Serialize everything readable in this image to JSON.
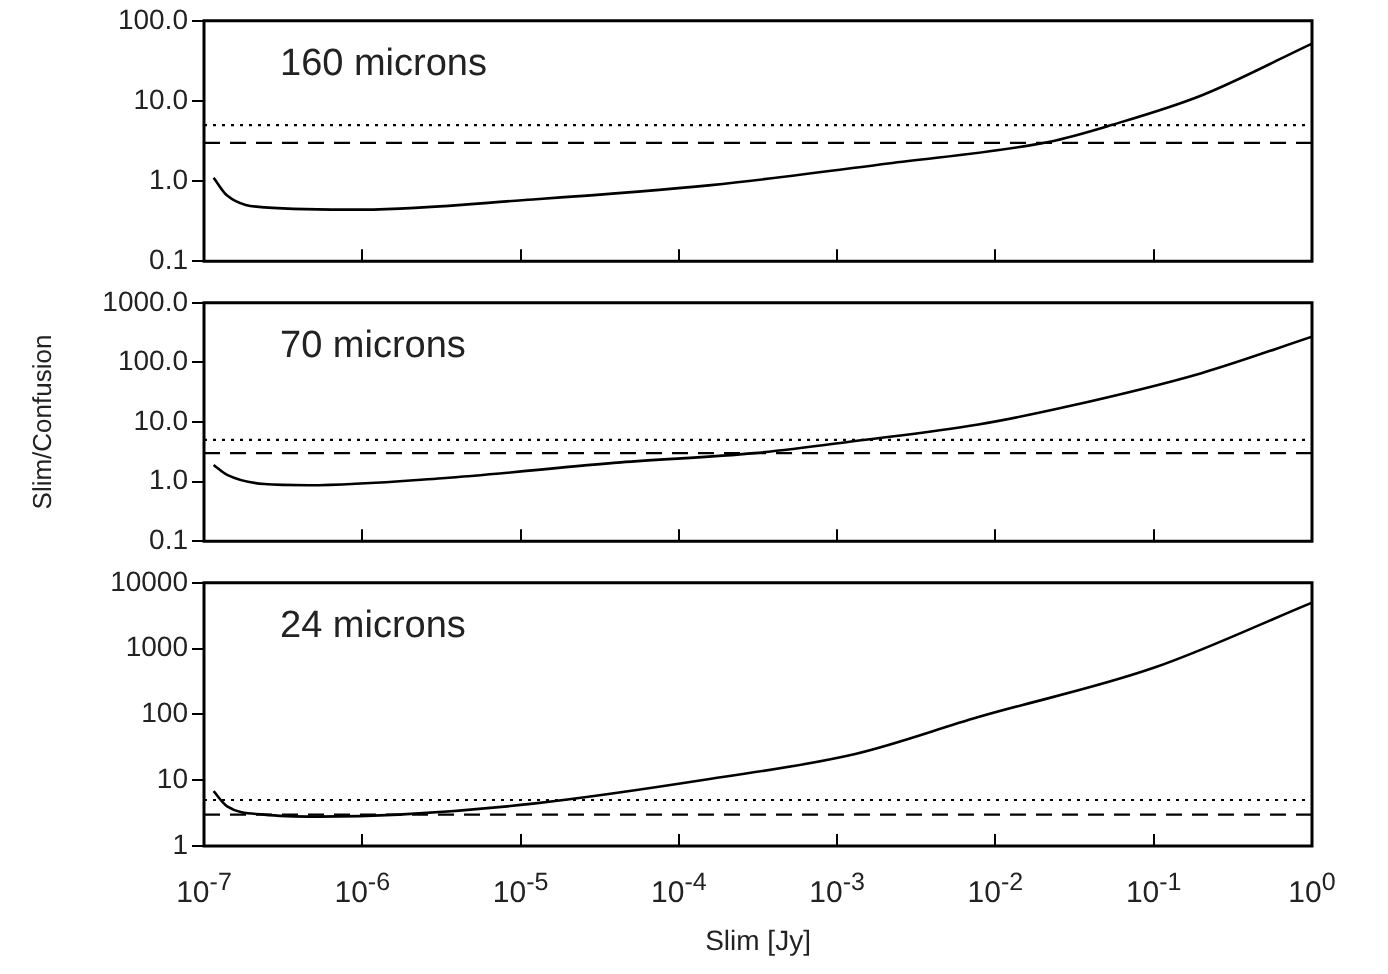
{
  "chart_data": [
    {
      "type": "line",
      "log": "xy",
      "grid": false,
      "legend": false,
      "tick_labels": "y",
      "marker": "none",
      "line_style": "solid",
      "annotations": [
        "160 microns"
      ],
      "x": [
        1.15e-07,
        1.4e-07,
        2.4e-07,
        1e-06,
        1.2e-05,
        0.00016,
        0.0021,
        0.022,
        0.054,
        0.2,
        1
      ],
      "series": [
        {
          "color": "#000000",
          "values": [
            1.1,
            0.66,
            0.47,
            0.44,
            0.59,
            0.89,
            1.66,
            3.1,
            5.0,
            11.7,
            52
          ]
        }
      ],
      "xlim": [
        1e-07,
        1
      ],
      "xticks": [
        {
          "value": 1e-07,
          "label": null
        },
        {
          "value": 1e-06,
          "label": null
        },
        {
          "value": 1e-05,
          "label": null
        },
        {
          "value": 0.0001,
          "label": null
        },
        {
          "value": 0.001,
          "label": null
        },
        {
          "value": 0.01,
          "label": null
        },
        {
          "value": 0.1,
          "label": null
        },
        {
          "value": 1,
          "label": null
        }
      ],
      "ylim": [
        0.1,
        100
      ],
      "yticks": [
        {
          "value": 0.1,
          "label": "0.1"
        },
        {
          "value": 1,
          "label": "1.0"
        },
        {
          "value": 10,
          "label": "10.0"
        },
        {
          "value": 100,
          "label": "100.0"
        }
      ],
      "ref_lines": [
        {
          "axis": "y",
          "value": 5,
          "line_style": "dotted",
          "color": "#000000"
        },
        {
          "axis": "y",
          "value": 3,
          "line_style": "dashed",
          "color": "#000000"
        }
      ]
    },
    {
      "type": "line",
      "log": "xy",
      "grid": false,
      "legend": false,
      "tick_labels": "y",
      "marker": "none",
      "line_style": "solid",
      "ylabel": "Slim/Confusion",
      "annotations": [
        "70 microns"
      ],
      "x": [
        1.15e-07,
        1.4e-07,
        2.4e-07,
        4.6e-07,
        3.2e-06,
        4.3e-05,
        0.0003,
        0.0013,
        0.0078,
        0.028,
        0.2,
        1
      ],
      "series": [
        {
          "color": "#000000",
          "values": [
            1.9,
            1.3,
            0.91,
            0.87,
            1.14,
            2.1,
            3.0,
            4.8,
            9.1,
            18,
            66,
            270
          ]
        }
      ],
      "xlim": [
        1e-07,
        1
      ],
      "xticks": [
        {
          "value": 1e-07,
          "label": null
        },
        {
          "value": 1e-06,
          "label": null
        },
        {
          "value": 1e-05,
          "label": null
        },
        {
          "value": 0.0001,
          "label": null
        },
        {
          "value": 0.001,
          "label": null
        },
        {
          "value": 0.01,
          "label": null
        },
        {
          "value": 0.1,
          "label": null
        },
        {
          "value": 1,
          "label": null
        }
      ],
      "ylim": [
        0.1,
        1000
      ],
      "yticks": [
        {
          "value": 0.1,
          "label": "0.1"
        },
        {
          "value": 1,
          "label": "1.0"
        },
        {
          "value": 10,
          "label": "10.0"
        },
        {
          "value": 100,
          "label": "100.0"
        },
        {
          "value": 1000,
          "label": "1000.0"
        }
      ],
      "ref_lines": [
        {
          "axis": "y",
          "value": 5,
          "line_style": "dotted",
          "color": "#000000"
        },
        {
          "axis": "y",
          "value": 3,
          "line_style": "dashed",
          "color": "#000000"
        }
      ]
    },
    {
      "type": "line",
      "log": "xy",
      "grid": false,
      "legend": false,
      "marker": "none",
      "line_style": "solid",
      "xlabel": "Slim [Jy]",
      "annotations": [
        "24 microns"
      ],
      "x": [
        1.15e-07,
        1.4e-07,
        2.4e-07,
        5.2e-07,
        1.7e-06,
        1.2e-05,
        0.00016,
        0.0013,
        0.0078,
        0.1,
        1
      ],
      "series": [
        {
          "color": "#000000",
          "values": [
            6.8,
            4.0,
            3.0,
            2.8,
            3.0,
            4.4,
            10.5,
            25,
            91,
            510,
            5000
          ]
        }
      ],
      "xlim": [
        1e-07,
        1
      ],
      "xticks": [
        {
          "value": 1e-07,
          "label": "10$^{-7}$"
        },
        {
          "value": 1e-06,
          "label": "10$^{-6}$"
        },
        {
          "value": 1e-05,
          "label": "10$^{-5}$"
        },
        {
          "value": 0.0001,
          "label": "10$^{-4}$"
        },
        {
          "value": 0.001,
          "label": "10$^{-3}$"
        },
        {
          "value": 0.01,
          "label": "10$^{-2}$"
        },
        {
          "value": 0.1,
          "label": "10$^{-1}$"
        },
        {
          "value": 1,
          "label": "10$^{0}$"
        }
      ],
      "ylim": [
        1,
        10000
      ],
      "yticks": [
        1,
        10,
        100,
        1000,
        10000
      ],
      "ref_lines": [
        {
          "axis": "y",
          "value": 5,
          "line_style": "dotted",
          "color": "#000000"
        },
        {
          "axis": "y",
          "value": 3,
          "line_style": "dashed",
          "color": "#000000"
        }
      ]
    }
  ]
}
